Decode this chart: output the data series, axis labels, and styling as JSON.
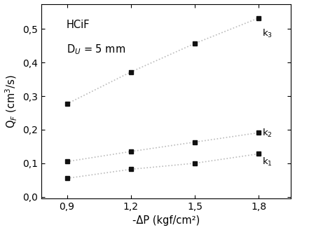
{
  "x": [
    0.9,
    1.2,
    1.5,
    1.8
  ],
  "k1": [
    0.055,
    0.082,
    0.1,
    0.128
  ],
  "k2": [
    0.105,
    0.135,
    0.163,
    0.191
  ],
  "k3": [
    0.277,
    0.372,
    0.457,
    0.533
  ],
  "xlabel": "-ΔP (kgf/cm²)",
  "ylabel": "Q$_F$ (cm$^3$/s)",
  "annotation_k1": "k$_1$",
  "annotation_k2": "k$_2$",
  "annotation_k3": "k$_3$",
  "text_line1": "HCiF",
  "text_line2": "D$_U$ = 5 mm",
  "xlim": [
    0.78,
    1.95
  ],
  "ylim": [
    -0.005,
    0.575
  ],
  "xticks": [
    0.9,
    1.2,
    1.5,
    1.8
  ],
  "yticks": [
    0.0,
    0.1,
    0.2,
    0.3,
    0.4,
    0.5
  ],
  "marker_color": "#111111",
  "line_color": "#bbbbbb",
  "background_color": "#ffffff"
}
